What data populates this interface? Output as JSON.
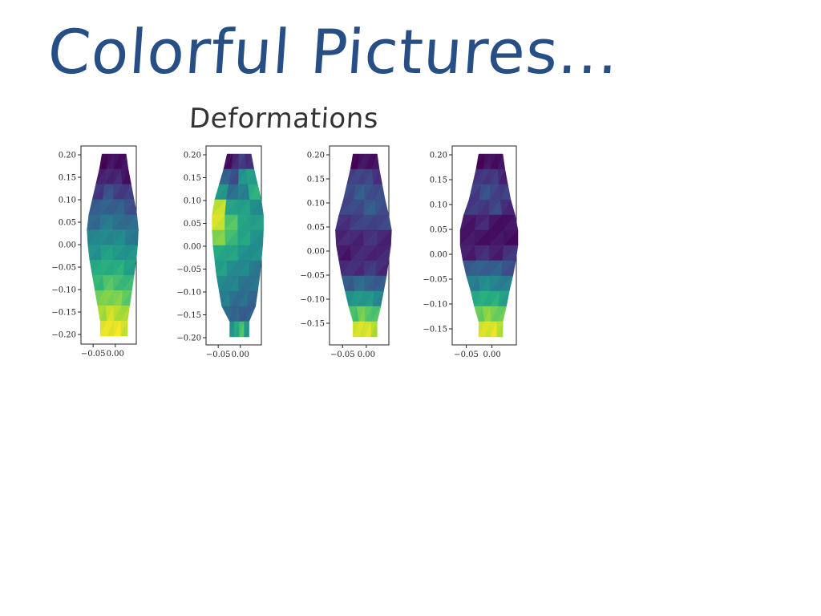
{
  "header": {
    "title": "Colorful Pictures...",
    "subtitle": "Deformations"
  },
  "colors": {
    "title": "#274f85",
    "subtitle": "#333333",
    "palette": "viridis"
  },
  "chart_data": [
    {
      "type": "heatmap",
      "title": "",
      "xlim": [
        -0.095,
        0.03
      ],
      "ylim": [
        -0.22,
        0.22
      ],
      "x_ticks": [
        "−0.05",
        "0.00"
      ],
      "y_ticks": [
        "0.20",
        "0.15",
        "0.10",
        "0.05",
        "0.00",
        "−0.05",
        "−0.10",
        "−0.15",
        "−0.20"
      ],
      "grid": false,
      "field": {
        "top": 0.0,
        "bottom": 1.0
      },
      "rows": [
        [
          0.02,
          0.04,
          0.05,
          0.03
        ],
        [
          0.08,
          0.12,
          0.1,
          0.06
        ],
        [
          0.18,
          0.24,
          0.2,
          0.17
        ],
        [
          0.28,
          0.33,
          0.3,
          0.26
        ],
        [
          0.36,
          0.4,
          0.38,
          0.34
        ],
        [
          0.44,
          0.48,
          0.46,
          0.42
        ],
        [
          0.52,
          0.56,
          0.54,
          0.5
        ],
        [
          0.6,
          0.64,
          0.62,
          0.58
        ],
        [
          0.68,
          0.72,
          0.7,
          0.66
        ],
        [
          0.78,
          0.82,
          0.8,
          0.76
        ],
        [
          0.88,
          0.92,
          0.9,
          0.86
        ],
        [
          0.95,
          0.98,
          0.97,
          0.94
        ]
      ]
    },
    {
      "type": "heatmap",
      "title": "",
      "xlim": [
        -0.095,
        0.03
      ],
      "ylim": [
        -0.22,
        0.22
      ],
      "x_ticks": [
        "−0.05",
        "0.00"
      ],
      "y_ticks": [
        "0.20",
        "0.15",
        "0.10",
        "0.05",
        "0.00",
        "−0.05",
        "−0.10",
        "−0.15",
        "−0.20"
      ],
      "grid": false,
      "rows": [
        [
          0.05,
          0.1,
          0.2,
          0.12
        ],
        [
          0.3,
          0.25,
          0.5,
          0.58
        ],
        [
          0.55,
          0.35,
          0.45,
          0.62
        ],
        [
          0.9,
          0.6,
          0.55,
          0.5
        ],
        [
          0.95,
          0.72,
          0.6,
          0.55
        ],
        [
          0.8,
          0.7,
          0.58,
          0.52
        ],
        [
          0.62,
          0.58,
          0.52,
          0.48
        ],
        [
          0.55,
          0.5,
          0.46,
          0.42
        ],
        [
          0.48,
          0.44,
          0.4,
          0.38
        ],
        [
          0.42,
          0.38,
          0.36,
          0.34
        ],
        [
          0.36,
          0.32,
          0.3,
          0.3
        ],
        [
          0.5,
          0.62,
          0.7,
          0.55
        ]
      ]
    },
    {
      "type": "heatmap",
      "title": "",
      "xlim": [
        -0.095,
        0.03
      ],
      "ylim": [
        -0.2,
        0.21
      ],
      "x_ticks": [
        "−0.05",
        "0.00"
      ],
      "y_ticks": [
        "0.20",
        "0.15",
        "0.10",
        "0.05",
        "0.00",
        "−0.05",
        "−0.10",
        "−0.15"
      ],
      "grid": false,
      "rows": [
        [
          0.02,
          0.04,
          0.06,
          0.03
        ],
        [
          0.18,
          0.22,
          0.2,
          0.16
        ],
        [
          0.24,
          0.28,
          0.26,
          0.22
        ],
        [
          0.2,
          0.24,
          0.28,
          0.26
        ],
        [
          0.16,
          0.18,
          0.22,
          0.2
        ],
        [
          0.1,
          0.12,
          0.14,
          0.12
        ],
        [
          0.08,
          0.1,
          0.12,
          0.1
        ],
        [
          0.12,
          0.14,
          0.16,
          0.14
        ],
        [
          0.3,
          0.34,
          0.32,
          0.28
        ],
        [
          0.5,
          0.55,
          0.52,
          0.48
        ],
        [
          0.72,
          0.78,
          0.75,
          0.7
        ],
        [
          0.92,
          0.96,
          0.94,
          0.9
        ]
      ]
    },
    {
      "type": "heatmap",
      "title": "",
      "xlim": [
        -0.095,
        0.03
      ],
      "ylim": [
        -0.18,
        0.21
      ],
      "x_ticks": [
        "−0.05",
        "0.00"
      ],
      "y_ticks": [
        "0.20",
        "0.15",
        "0.10",
        "0.05",
        "0.00",
        "−0.05",
        "−0.10",
        "−0.15"
      ],
      "grid": false,
      "rows": [
        [
          0.02,
          0.04,
          0.05,
          0.03
        ],
        [
          0.14,
          0.18,
          0.16,
          0.12
        ],
        [
          0.2,
          0.24,
          0.22,
          0.18
        ],
        [
          0.16,
          0.18,
          0.2,
          0.14
        ],
        [
          0.08,
          0.1,
          0.06,
          0.04
        ],
        [
          0.05,
          0.06,
          0.04,
          0.05
        ],
        [
          0.1,
          0.12,
          0.1,
          0.14
        ],
        [
          0.28,
          0.32,
          0.3,
          0.26
        ],
        [
          0.44,
          0.48,
          0.46,
          0.42
        ],
        [
          0.6,
          0.64,
          0.62,
          0.58
        ],
        [
          0.78,
          0.82,
          0.8,
          0.76
        ],
        [
          0.93,
          0.96,
          0.95,
          0.91
        ]
      ]
    }
  ]
}
